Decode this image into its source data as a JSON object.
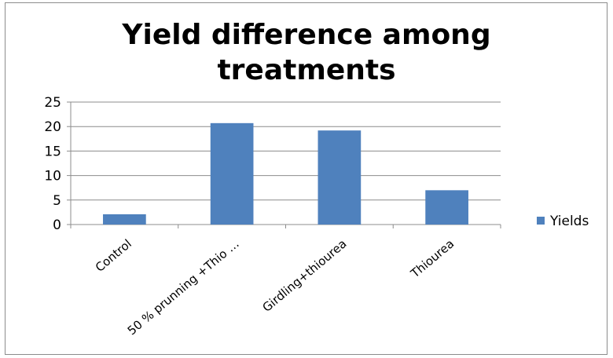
{
  "chart_data": {
    "type": "bar",
    "title_lines": [
      "Yield difference  among",
      "treatments"
    ],
    "categories": [
      "Control",
      "50 % prunning +Thio …",
      "Girdling+thiourea",
      "Thiourea"
    ],
    "series": [
      {
        "name": "Yields",
        "values": [
          2.1,
          20.7,
          19.2,
          7.0
        ],
        "color": "#4f81bd"
      }
    ],
    "ylim": [
      0,
      25
    ],
    "yticks": [
      0,
      5,
      10,
      15,
      20,
      25
    ],
    "grid": true,
    "legend": "right",
    "xlabel": "",
    "ylabel": ""
  }
}
